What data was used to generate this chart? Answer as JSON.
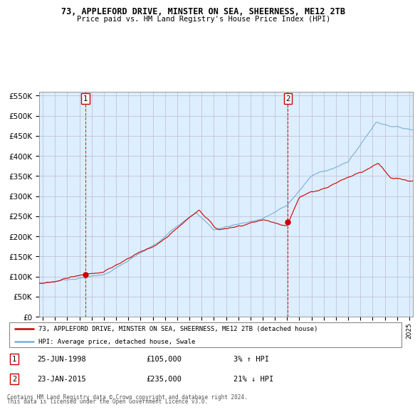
{
  "title_line1": "73, APPLEFORD DRIVE, MINSTER ON SEA, SHEERNESS, ME12 2TB",
  "title_line2": "Price paid vs. HM Land Registry's House Price Index (HPI)",
  "xlim_start": 1994.7,
  "xlim_end": 2025.3,
  "ylim": [
    0,
    560000
  ],
  "yticks": [
    0,
    50000,
    100000,
    150000,
    200000,
    250000,
    300000,
    350000,
    400000,
    450000,
    500000,
    550000
  ],
  "sale1_x": 1998.484,
  "sale1_y": 105000,
  "sale2_x": 2015.07,
  "sale2_y": 235000,
  "property_color": "#cc0000",
  "hpi_color": "#7ab0d4",
  "plot_bg_color": "#ddeeff",
  "legend_property": "73, APPLEFORD DRIVE, MINSTER ON SEA, SHEERNESS, ME12 2TB (detached house)",
  "legend_hpi": "HPI: Average price, detached house, Swale",
  "annotation1_date": "25-JUN-1998",
  "annotation1_price": "£105,000",
  "annotation1_hpi": "3% ↑ HPI",
  "annotation2_date": "23-JAN-2015",
  "annotation2_price": "£235,000",
  "annotation2_hpi": "21% ↓ HPI",
  "footer_line1": "Contains HM Land Registry data © Crown copyright and database right 2024.",
  "footer_line2": "This data is licensed under the Open Government Licence v3.0.",
  "bg_color": "#ffffff",
  "grid_color": "#bbbbcc"
}
